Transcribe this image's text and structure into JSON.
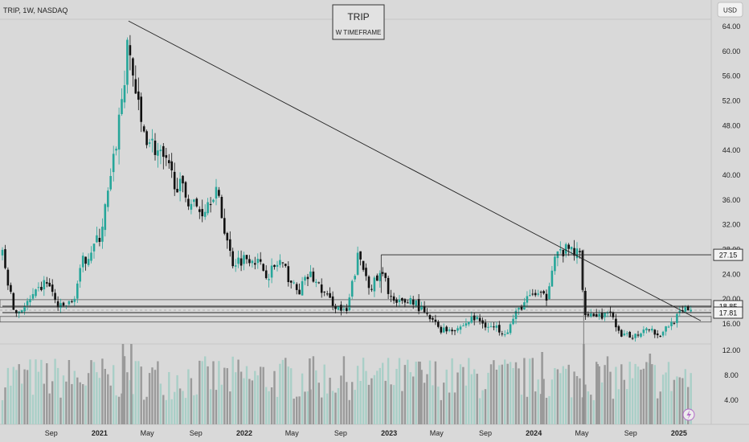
{
  "header": {
    "symbol_line": "TRIP, 1W, NASDAQ",
    "currency": "USD"
  },
  "annotation_box": {
    "title": "TRIP",
    "subtitle": "W TIMEFRAME"
  },
  "colors": {
    "background": "#d9d9d9",
    "up_candle": "#26a69a",
    "down_candle": "#111111",
    "volume_up": "#a9cfc7",
    "volume_down": "#9a9a9a",
    "trendline": "#222222",
    "zone_line": "#555555"
  },
  "chart_data": {
    "type": "candlestick",
    "ylim": [
      0,
      66
    ],
    "yticks": [
      "64.00",
      "60.00",
      "56.00",
      "52.00",
      "48.00",
      "44.00",
      "40.00",
      "36.00",
      "32.00",
      "28.00",
      "24.00",
      "20.00",
      "16.00",
      "12.00",
      "8.00",
      "4.00"
    ],
    "xticks": [
      "Sep",
      "2021",
      "May",
      "Sep",
      "2022",
      "May",
      "Sep",
      "2023",
      "May",
      "Sep",
      "2024",
      "May",
      "Sep",
      "2025"
    ],
    "price_labels": [
      "27.15",
      "18.85",
      "17.81"
    ],
    "price_lines": [
      {
        "label": "27.15",
        "value": 27.15,
        "from_date": "2022-12-12"
      },
      {
        "label": "18.85",
        "value": 18.85,
        "from_date": "2020-05-01"
      },
      {
        "label": "17.81",
        "value": 17.81,
        "from_date": "2020-05-01"
      }
    ],
    "zones": [
      [
        18.7,
        19.9
      ],
      [
        16.3,
        17.2
      ]
    ],
    "trendline": {
      "from": [
        "2021-03-15",
        64.9
      ],
      "to": [
        "2025-02-25",
        16.5
      ]
    },
    "anchors": [
      [
        "2020-05-01",
        27
      ],
      [
        "2020-06-01",
        17.5
      ],
      [
        "2020-07-15",
        20
      ],
      [
        "2020-08-20",
        23
      ],
      [
        "2020-09-20",
        18.5
      ],
      [
        "2020-10-25",
        19.5
      ],
      [
        "2020-11-20",
        26
      ],
      [
        "2021-01-01",
        30
      ],
      [
        "2021-02-01",
        40
      ],
      [
        "2021-03-15",
        61
      ],
      [
        "2021-04-15",
        48
      ],
      [
        "2021-05-25",
        44
      ],
      [
        "2021-07-01",
        40
      ],
      [
        "2021-08-15",
        36
      ],
      [
        "2021-09-15",
        34
      ],
      [
        "2021-10-20",
        38
      ],
      [
        "2021-12-01",
        26
      ],
      [
        "2022-01-20",
        27
      ],
      [
        "2022-03-01",
        24
      ],
      [
        "2022-04-01",
        26
      ],
      [
        "2022-05-15",
        21
      ],
      [
        "2022-06-15",
        24
      ],
      [
        "2022-08-01",
        20
      ],
      [
        "2022-09-15",
        17.5
      ],
      [
        "2022-10-15",
        27
      ],
      [
        "2022-11-15",
        22
      ],
      [
        "2022-12-15",
        24
      ],
      [
        "2023-01-15",
        19
      ],
      [
        "2023-03-01",
        20
      ],
      [
        "2023-04-01",
        17.5
      ],
      [
        "2023-05-15",
        15
      ],
      [
        "2023-07-01",
        15.5
      ],
      [
        "2023-08-01",
        17
      ],
      [
        "2023-09-15",
        15.5
      ],
      [
        "2023-10-25",
        14.8
      ],
      [
        "2023-11-25",
        18.5
      ],
      [
        "2024-01-01",
        21
      ],
      [
        "2024-02-01",
        20
      ],
      [
        "2024-02-20",
        27
      ],
      [
        "2024-04-01",
        28
      ],
      [
        "2024-04-28",
        27
      ],
      [
        "2024-05-06",
        18.2
      ],
      [
        "2024-06-01",
        17.5
      ],
      [
        "2024-07-20",
        17.3
      ],
      [
        "2024-08-05",
        13.8
      ],
      [
        "2024-09-15",
        14.2
      ],
      [
        "2024-10-15",
        15.8
      ],
      [
        "2024-11-10",
        14
      ],
      [
        "2024-12-01",
        15.5
      ],
      [
        "2025-01-15",
        18.2
      ],
      [
        "2025-02-01",
        18.6
      ]
    ]
  }
}
